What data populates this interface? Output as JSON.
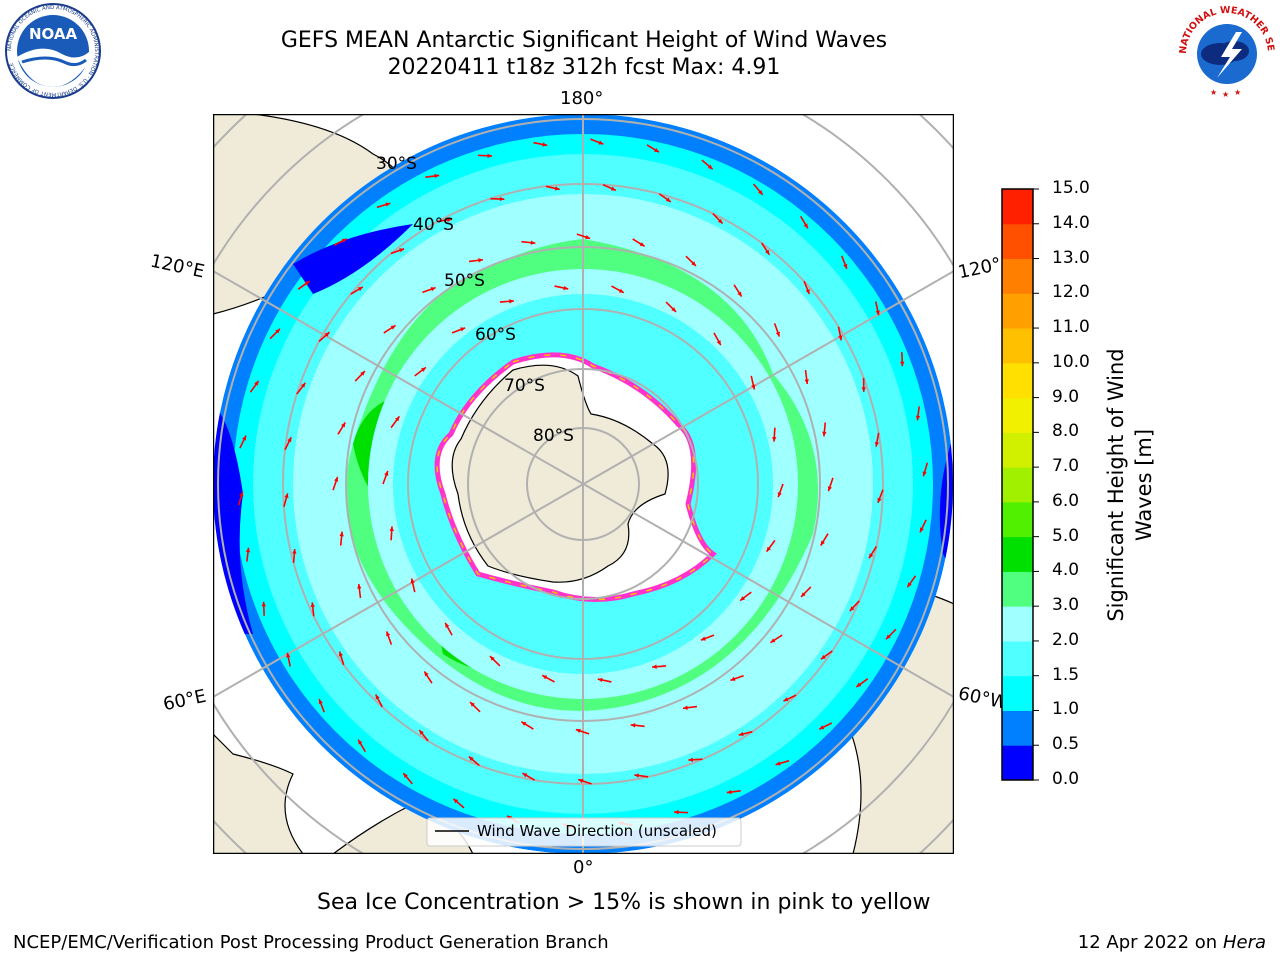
{
  "header": {
    "title_line1": "GEFS MEAN Antarctic Significant Height of Wind Waves",
    "title_line2": "20220411 t18z 312h fcst   Max: 4.91"
  },
  "logos": {
    "noaa_text": "NOAA",
    "noaa_ring": "NATIONAL OCEANIC AND ATMOSPHERIC ADMINISTRATION · U.S. DEPARTMENT OF COMMERCE",
    "nws_ring": "NATIONAL WEATHER SERVICE"
  },
  "map": {
    "projection": "south-polar-stereographic",
    "longitude_labels": {
      "top": "180°",
      "bottom": "0°",
      "left_upper": "120°E",
      "left_lower": "60°E",
      "right_upper": "120°",
      "right_lower": "60°W"
    },
    "latitude_labels": [
      "30°S",
      "40°S",
      "50°S",
      "60°S",
      "70°S",
      "80°S"
    ],
    "legend_label": "Wind Wave Direction (unscaled)",
    "colors": {
      "land": "#efebd8",
      "ice_shelf": "#ffffff",
      "sea_ice_edge": "#ff33cc",
      "grid": "#b0b0b0",
      "arrows": "#ff0000"
    }
  },
  "colorbar": {
    "label": "Significant Height of Wind Waves [m]",
    "label_line1": "Significant Height of Wind",
    "label_line2": "Waves [m]",
    "ticks": [
      "15.0",
      "14.0",
      "13.0",
      "12.0",
      "11.0",
      "10.0",
      "9.0",
      "8.0",
      "7.0",
      "6.0",
      "5.0",
      "4.0",
      "3.0",
      "2.0",
      "1.5",
      "1.0",
      "0.5",
      "0.0"
    ],
    "band_colors_bottom_to_top": [
      "#0000ff",
      "#0080ff",
      "#00ffff",
      "#50ffff",
      "#a0ffff",
      "#50ff80",
      "#00e000",
      "#50f000",
      "#a0f000",
      "#d0f000",
      "#f0f000",
      "#ffe000",
      "#ffc000",
      "#ffa000",
      "#ff8000",
      "#ff5000",
      "#ff2000"
    ]
  },
  "caption": "Sea Ice Concentration > 15% is shown in pink to yellow",
  "footer": {
    "left": "NCEP/EMC/Verification Post Processing Product Generation Branch",
    "right_prefix": "12 Apr 2022 on ",
    "right_italic": "Hera"
  }
}
